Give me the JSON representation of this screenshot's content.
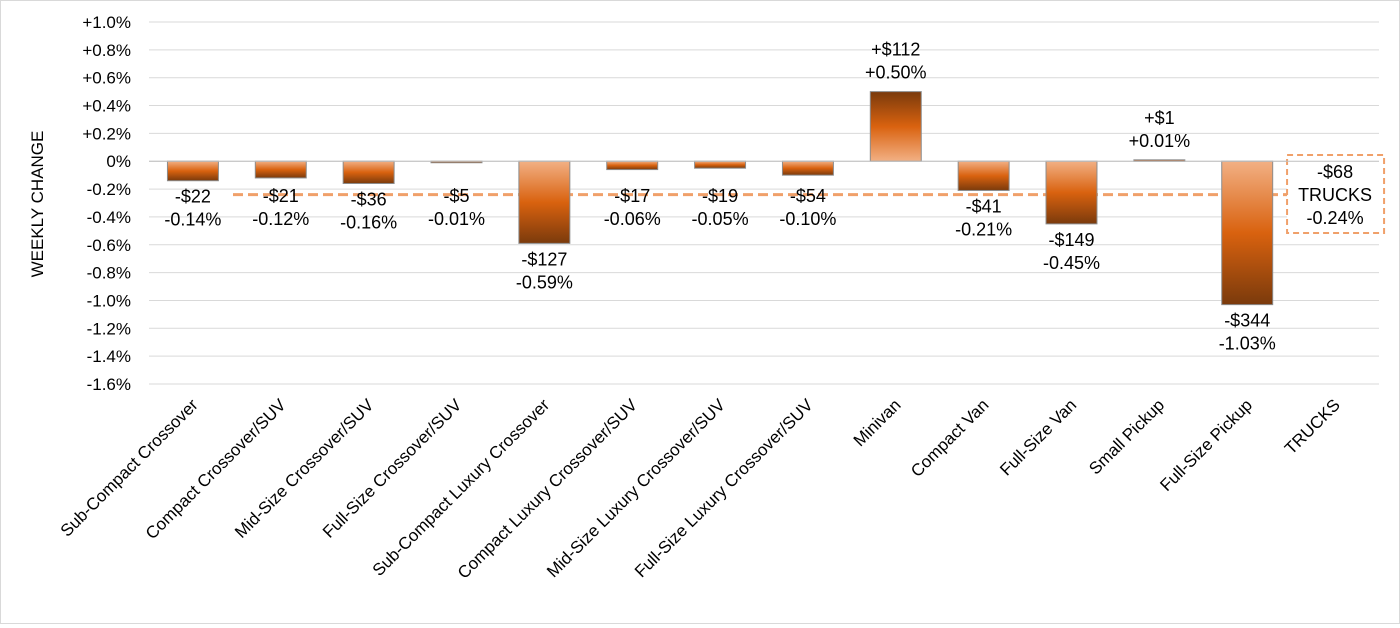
{
  "chart_data": {
    "type": "bar",
    "ylabel": "WEEKLY CHANGE",
    "xlabel": "",
    "title": "",
    "ylim": [
      -1.6,
      1.0
    ],
    "ytick_step": 0.2,
    "ytick_labels": [
      "+1.0%",
      "+0.8%",
      "+0.6%",
      "+0.4%",
      "+0.2%",
      "0%",
      "-0.2%",
      "-0.4%",
      "-0.6%",
      "-0.8%",
      "-1.0%",
      "-1.2%",
      "-1.4%",
      "-1.6%"
    ],
    "grid": true,
    "categories": [
      "Sub-Compact Crossover",
      "Compact Crossover/SUV",
      "Mid-Size Crossover/SUV",
      "Full-Size Crossover/SUV",
      "Sub-Compact Luxury Crossover",
      "Compact Luxury Crossover/SUV",
      "Mid-Size Luxury Crossover/SUV",
      "Full-Size Luxury Crossover/SUV",
      "Minivan",
      "Compact Van",
      "Full-Size Van",
      "Small Pickup",
      "Full-Size Pickup",
      "TRUCKS"
    ],
    "values": [
      -0.14,
      -0.12,
      -0.16,
      -0.01,
      -0.59,
      -0.06,
      -0.05,
      -0.1,
      0.5,
      -0.21,
      -0.45,
      0.01,
      -1.03,
      null
    ],
    "dollar_labels": [
      "-$22",
      "-$21",
      "-$36",
      "-$5",
      "-$127",
      "-$17",
      "-$19",
      "-$54",
      "+$112",
      "-$41",
      "-$149",
      "+$1",
      "-$344",
      "-$68"
    ],
    "percent_labels": [
      "-0.14%",
      "-0.12%",
      "-0.16%",
      "-0.01%",
      "-0.59%",
      "-0.06%",
      "-0.05%",
      "-0.10%",
      "+0.50%",
      "-0.21%",
      "-0.45%",
      "+0.01%",
      "-1.03%",
      "-0.24%"
    ],
    "reference_line": {
      "value": -0.24,
      "labels": [
        "-$68",
        "TRUCKS",
        "-0.24%"
      ]
    },
    "colors": {
      "bar_dark": "#7a3a0c",
      "bar_mid": "#d9620f",
      "bar_light": "#f2b084",
      "reference": "#f0a06a",
      "grid": "#d9d9d9"
    }
  }
}
